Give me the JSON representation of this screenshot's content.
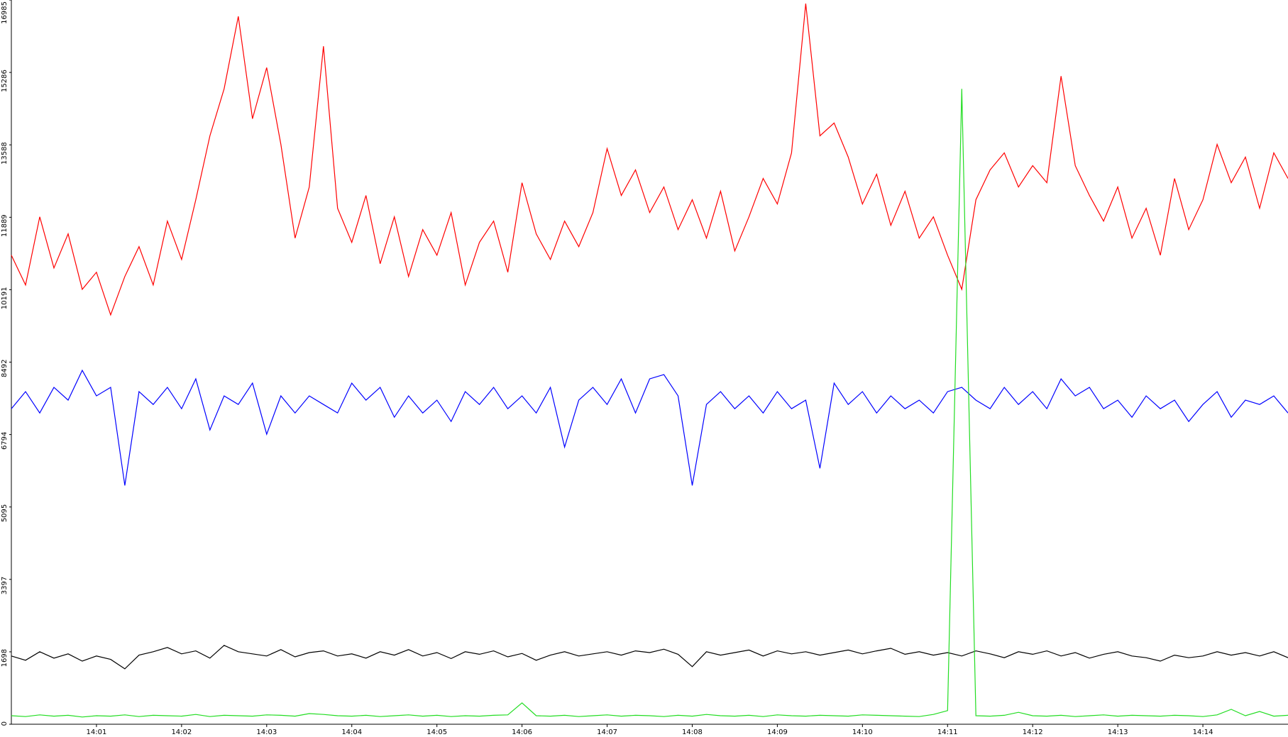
{
  "chart_data": {
    "type": "line",
    "categories": [
      null,
      null,
      null,
      null,
      null,
      null,
      "14:01",
      null,
      null,
      null,
      null,
      null,
      "14:02",
      null,
      null,
      null,
      null,
      null,
      "14:03",
      null,
      null,
      null,
      null,
      null,
      "14:04",
      null,
      null,
      null,
      null,
      null,
      "14:05",
      null,
      null,
      null,
      null,
      null,
      "14:06",
      null,
      null,
      null,
      null,
      null,
      "14:07",
      null,
      null,
      null,
      null,
      null,
      "14:08",
      null,
      null,
      null,
      null,
      null,
      "14:09",
      null,
      null,
      null,
      null,
      null,
      "14:10",
      null,
      null,
      null,
      null,
      null,
      "14:11",
      null,
      null,
      null,
      null,
      null,
      "14:12",
      null,
      null,
      null,
      null,
      null,
      "14:13",
      null,
      null,
      null,
      null,
      null,
      "14:14",
      null,
      null,
      null,
      null,
      null,
      null
    ],
    "series": [
      {
        "color": "#ff0000",
        "values": [
          11000,
          10300,
          11900,
          10700,
          11500,
          10200,
          10600,
          9600,
          10500,
          11200,
          10300,
          11800,
          10900,
          12300,
          13800,
          14900,
          16600,
          14200,
          15400,
          13600,
          11400,
          12600,
          15900,
          12100,
          11300,
          12400,
          10800,
          11900,
          10500,
          11600,
          11000,
          12000,
          10300,
          11300,
          11800,
          10600,
          12700,
          11500,
          10900,
          11800,
          11200,
          12000,
          13500,
          12400,
          13000,
          12000,
          12600,
          11600,
          12300,
          11400,
          12500,
          11100,
          11900,
          12800,
          12200,
          13400,
          16900,
          13800,
          14100,
          13300,
          12200,
          12900,
          11700,
          12500,
          11400,
          11900,
          11000,
          10200,
          12300,
          13000,
          13400,
          12600,
          13100,
          12700,
          15200,
          13100,
          12400,
          11800,
          12600,
          11400,
          12100,
          11000,
          12800,
          11600,
          12300,
          13600,
          12700,
          13300,
          12100,
          13400,
          12800
        ]
      },
      {
        "color": "#0000ff",
        "values": [
          7400,
          7800,
          7300,
          7900,
          7600,
          8300,
          7700,
          7900,
          5600,
          7800,
          7500,
          7900,
          7400,
          8100,
          6900,
          7700,
          7500,
          8000,
          6800,
          7700,
          7300,
          7700,
          7500,
          7300,
          8000,
          7600,
          7900,
          7200,
          7700,
          7300,
          7600,
          7100,
          7800,
          7500,
          7900,
          7400,
          7700,
          7300,
          7900,
          6500,
          7600,
          7900,
          7500,
          8100,
          7300,
          8100,
          8200,
          7700,
          5600,
          7500,
          7800,
          7400,
          7700,
          7300,
          7800,
          7400,
          7600,
          6000,
          8000,
          7500,
          7800,
          7300,
          7700,
          7400,
          7600,
          7300,
          7800,
          7900,
          7600,
          7400,
          7900,
          7500,
          7800,
          7400,
          8100,
          7700,
          7900,
          7400,
          7600,
          7200,
          7700,
          7400,
          7600,
          7100,
          7500,
          7800,
          7200,
          7600,
          7500,
          7700,
          7300
        ]
      },
      {
        "color": "#000000",
        "values": [
          1600,
          1500,
          1700,
          1550,
          1650,
          1480,
          1600,
          1520,
          1300,
          1620,
          1700,
          1800,
          1650,
          1720,
          1550,
          1850,
          1700,
          1650,
          1600,
          1750,
          1580,
          1680,
          1720,
          1600,
          1650,
          1550,
          1700,
          1620,
          1750,
          1600,
          1680,
          1540,
          1700,
          1640,
          1720,
          1580,
          1660,
          1500,
          1620,
          1700,
          1600,
          1650,
          1700,
          1620,
          1720,
          1680,
          1760,
          1640,
          1350,
          1700,
          1620,
          1680,
          1740,
          1600,
          1720,
          1650,
          1700,
          1620,
          1680,
          1740,
          1650,
          1720,
          1780,
          1640,
          1700,
          1620,
          1680,
          1600,
          1720,
          1650,
          1560,
          1700,
          1640,
          1720,
          1600,
          1680,
          1550,
          1640,
          1700,
          1600,
          1560,
          1480,
          1620,
          1560,
          1600,
          1700,
          1620,
          1680,
          1600,
          1700,
          1560
        ]
      },
      {
        "color": "#22dd22",
        "values": [
          200,
          180,
          220,
          190,
          210,
          170,
          200,
          190,
          220,
          180,
          210,
          200,
          190,
          230,
          180,
          210,
          200,
          190,
          220,
          210,
          190,
          250,
          230,
          200,
          190,
          210,
          180,
          200,
          220,
          190,
          210,
          180,
          200,
          190,
          210,
          220,
          500,
          200,
          190,
          210,
          180,
          200,
          220,
          190,
          210,
          200,
          180,
          210,
          190,
          230,
          200,
          190,
          210,
          180,
          220,
          200,
          190,
          210,
          200,
          190,
          220,
          210,
          200,
          190,
          180,
          230,
          320,
          14900,
          200,
          190,
          210,
          280,
          200,
          190,
          210,
          180,
          200,
          220,
          190,
          210,
          200,
          190,
          210,
          200,
          180,
          220,
          350,
          200,
          300,
          190,
          210
        ]
      }
    ],
    "ylim": [
      0,
      16985
    ],
    "yticks": [
      0,
      1698,
      3397,
      5095,
      6794,
      8492,
      10191,
      11889,
      13588,
      15286,
      16985
    ]
  }
}
